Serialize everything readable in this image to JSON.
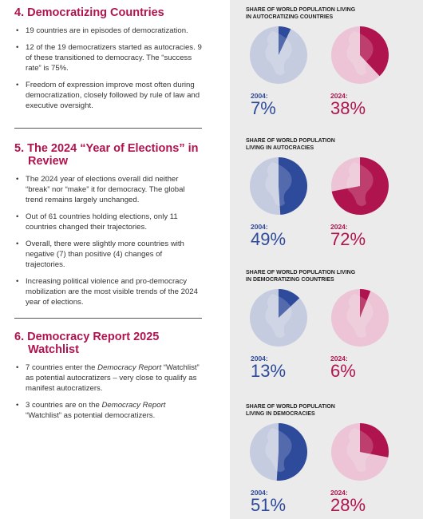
{
  "sections": [
    {
      "number": "4.",
      "title": "Democratizing Countries",
      "bullets": [
        [
          "19 countries are in episodes of democratization."
        ],
        [
          "12 of the 19 democratizers started as autocracies. 9 of these transitioned to democracy. The “success rate” is 75%."
        ],
        [
          "Freedom of expression improve most often during democratization, closely followed by rule of law and executive oversight."
        ]
      ]
    },
    {
      "number": "5.",
      "title": "The 2024 “Year of Elections” in Review",
      "bullets": [
        [
          "The 2024 year of elections overall did neither “break” nor “make” it for democracy. The global trend remains largely unchanged."
        ],
        [
          "Out of 61 countries holding elections, only 11 countries changed their trajectories."
        ],
        [
          "Overall, there were slightly more countries with negative (7) than positive (4) changes of trajectories."
        ],
        [
          "Increasing political violence and pro-democracy mobilization are the most visible trends of the 2024 year of elections."
        ]
      ]
    },
    {
      "number": "6.",
      "title": "Democracy Report 2025 Watchlist",
      "bullets": [
        [
          "7 countries enter the ",
          "Democracy Report",
          " “Watchlist” as potential autocratizers – very close to qualify as manifest autocratizers."
        ],
        [
          "3 countries are on the ",
          "Democracy Report",
          " “Watchlist” as potential democratizers."
        ]
      ]
    }
  ],
  "panels": [
    {
      "title_lines": [
        "SHARE OF WORLD POPULATION LIVING",
        "IN AUTOCRATIZING COUNTRIES"
      ],
      "items": [
        {
          "year": "2004:",
          "value": 7,
          "label": "7%"
        },
        {
          "year": "2024:",
          "value": 38,
          "label": "38%"
        }
      ]
    },
    {
      "title_lines": [
        "SHARE OF WORLD POPULATION",
        "LIVING IN AUTOCRACIES"
      ],
      "items": [
        {
          "year": "2004:",
          "value": 49,
          "label": "49%"
        },
        {
          "year": "2024:",
          "value": 72,
          "label": "72%"
        }
      ]
    },
    {
      "title_lines": [
        "SHARE OF WORLD POPULATION LIVING",
        "IN DEMOCRATIZING COUNTRIES"
      ],
      "items": [
        {
          "year": "2004:",
          "value": 13,
          "label": "13%"
        },
        {
          "year": "2024:",
          "value": 6,
          "label": "6%"
        }
      ]
    },
    {
      "title_lines": [
        "SHARE OF WORLD POPULATION",
        "LIVING IN DEMOCRACIES"
      ],
      "items": [
        {
          "year": "2004:",
          "value": 51,
          "label": "51%"
        },
        {
          "year": "2024:",
          "value": 28,
          "label": "28%"
        }
      ]
    }
  ]
}
